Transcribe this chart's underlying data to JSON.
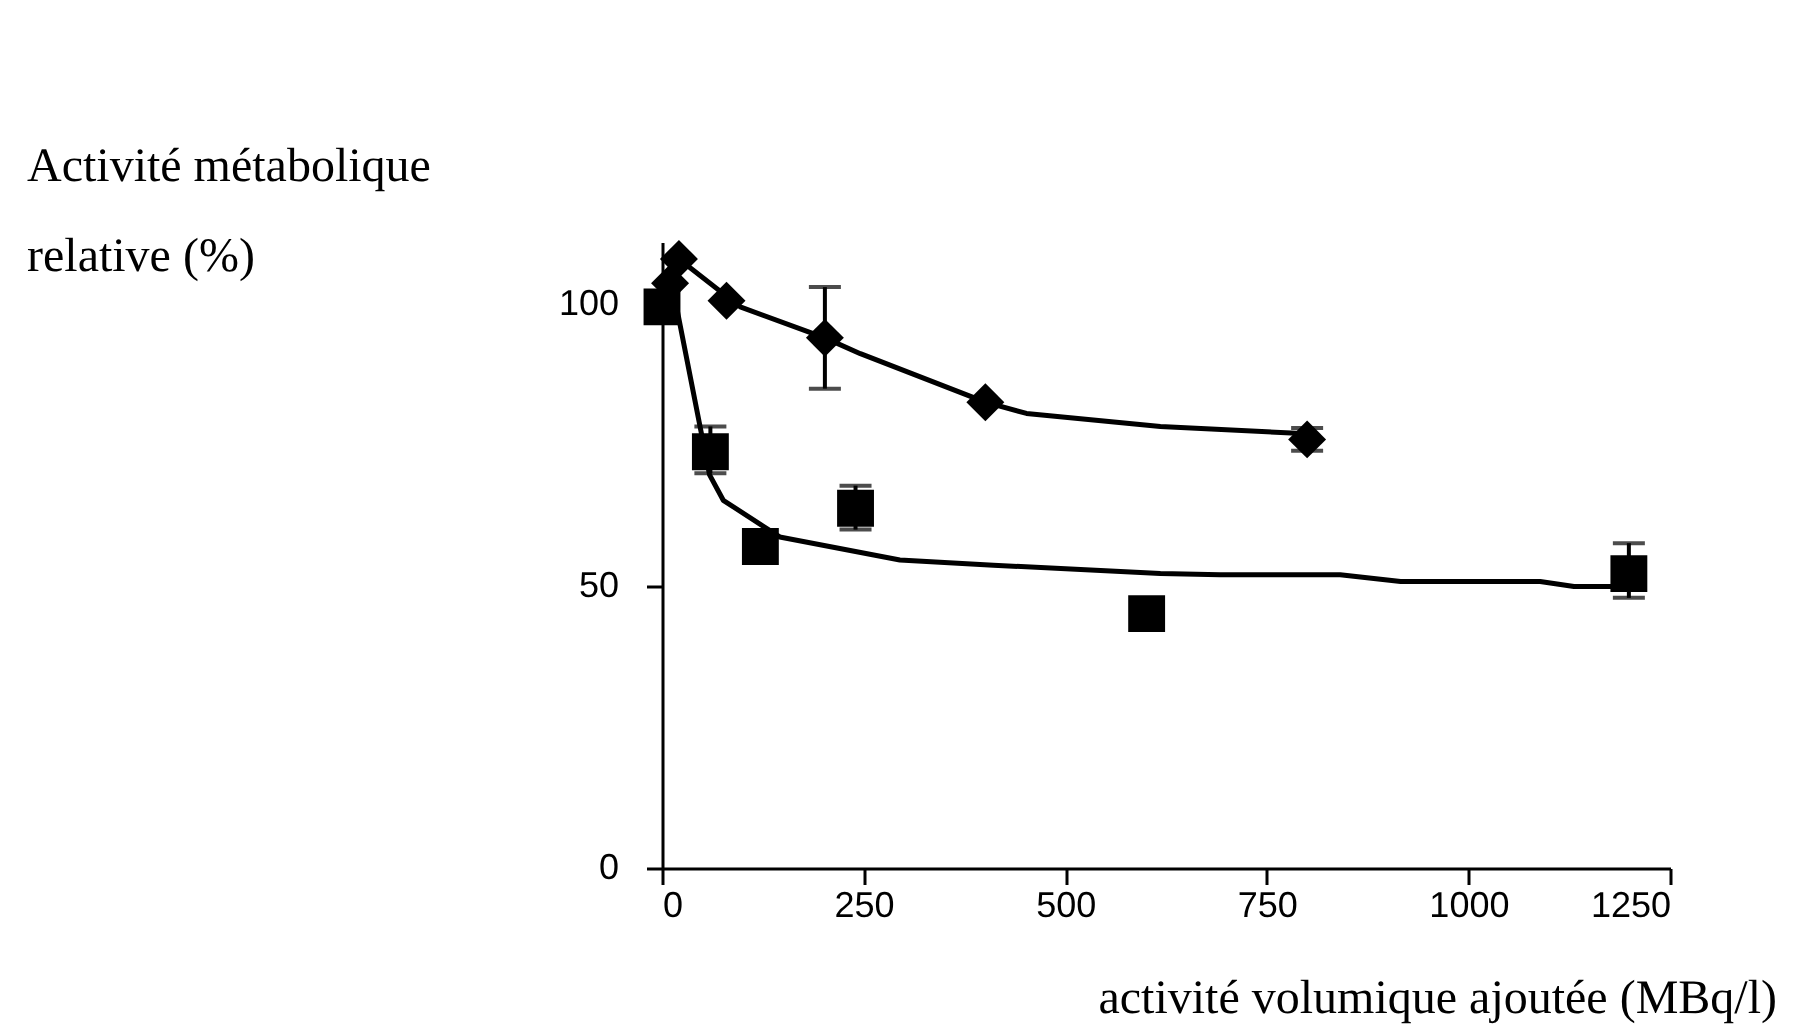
{
  "chart_data": {
    "type": "scatter",
    "ylabel": "Activité métabolique\nrelative (%)",
    "xlabel": "activité volumique ajoutée (MBq/l)",
    "xlim": [
      0,
      1250
    ],
    "xticks": [
      0,
      250,
      500,
      750,
      1000,
      1250
    ],
    "ylim": [
      0,
      111
    ],
    "yticks": [
      0,
      50,
      100
    ],
    "grid": false,
    "series": [
      {
        "type": "line",
        "color": "#000000",
        "marker": "none",
        "line_style": "solid",
        "x": [
          0,
          21,
          97,
          202,
          246,
          401,
          452,
          618,
          800
        ],
        "values": [
          103,
          108,
          99.5,
          94,
          91.2,
          82.6,
          80.6,
          78.3,
          77
        ]
      },
      {
        "type": "line",
        "color": "#000000",
        "marker": "none",
        "line_style": "solid",
        "x": [
          0,
          18,
          59,
          76,
          146,
          295,
          411,
          618,
          692,
          841,
          916,
          1089,
          1131,
          1200
        ],
        "values": [
          100,
          99.5,
          69.7,
          65.2,
          58.7,
          54.6,
          53.7,
          52.2,
          52,
          52,
          50.8,
          50.8,
          49.9,
          49.9
        ]
      },
      {
        "color": "#000000",
        "marker": "diamond",
        "x": [
          10,
          21,
          80,
          202,
          401,
          800
        ],
        "values": [
          103.7,
          108,
          100.6,
          94,
          82.6,
          76
        ],
        "errors": [
          null,
          null,
          null,
          [
            85,
            103
          ],
          null,
          [
            74,
            78
          ]
        ]
      },
      {
        "color": "#000000",
        "marker": "square",
        "x": [
          0,
          60,
          122,
          240,
          601,
          1199
        ],
        "values": [
          99.5,
          73.8,
          57,
          63.8,
          45.1,
          52.2
        ],
        "errors": [
          null,
          [
            70,
            78.3
          ],
          null,
          [
            60,
            67.8
          ],
          null,
          [
            47.9,
            57.6
          ]
        ]
      }
    ]
  }
}
